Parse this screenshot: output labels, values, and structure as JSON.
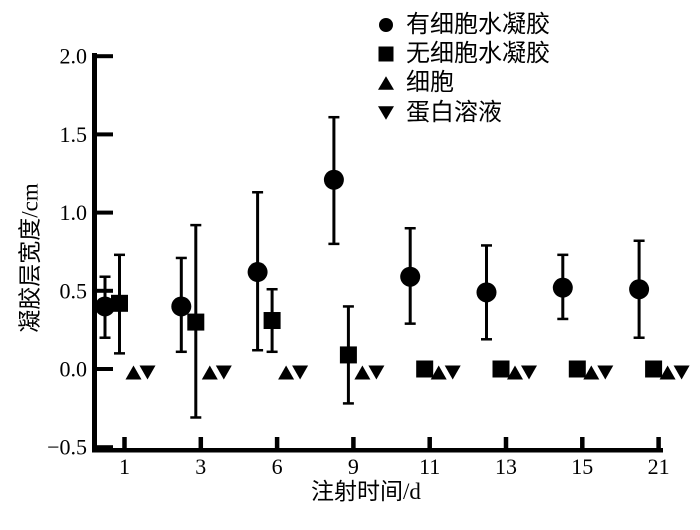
{
  "figure": {
    "background": "#ffffff",
    "foreground": "#000000"
  },
  "chart_data": {
    "type": "scatter",
    "title": "",
    "xlabel": "注射时间/d",
    "ylabel": "凝胶层宽度/cm",
    "x_tick_labels": [
      "1",
      "3",
      "6",
      "9",
      "11",
      "13",
      "15",
      "21"
    ],
    "y_tick_labels": [
      "2.0",
      "1.5",
      "1.0",
      "0.5",
      "0.0",
      "−0.5"
    ],
    "y_tick_values": [
      2.0,
      1.5,
      1.0,
      0.5,
      0.0,
      -0.5
    ],
    "ylim": [
      -0.5,
      2.0
    ],
    "grid": false,
    "legend_position": "top-right",
    "series": [
      {
        "name": "有细胞水凝胶",
        "marker": "circle",
        "values": [
          0.4,
          0.4,
          0.62,
          1.21,
          0.59,
          0.49,
          0.52,
          0.51
        ],
        "err_low": [
          0.2,
          0.11,
          0.12,
          0.8,
          0.29,
          0.19,
          0.32,
          0.2
        ],
        "err_high": [
          0.59,
          0.71,
          1.13,
          1.61,
          0.9,
          0.79,
          0.73,
          0.82
        ]
      },
      {
        "name": "无细胞水凝胶",
        "marker": "square",
        "values": [
          0.42,
          0.3,
          0.31,
          0.09,
          0,
          0,
          0,
          0
        ],
        "err_low": [
          0.1,
          -0.31,
          0.11,
          -0.22,
          0,
          0,
          0,
          0
        ],
        "err_high": [
          0.73,
          0.92,
          0.51,
          0.4,
          0,
          0,
          0,
          0
        ]
      },
      {
        "name": "细胞",
        "marker": "triangle-up",
        "values": [
          0,
          0,
          0,
          0,
          0,
          0,
          0,
          0
        ],
        "err_low": [
          0,
          0,
          0,
          0,
          0,
          0,
          0,
          0
        ],
        "err_high": [
          0,
          0,
          0,
          0,
          0,
          0,
          0,
          0
        ]
      },
      {
        "name": "蛋白溶液",
        "marker": "triangle-down",
        "values": [
          0,
          0,
          0,
          0,
          0,
          0,
          0,
          0
        ],
        "err_low": [
          0,
          0,
          0,
          0,
          0,
          0,
          0,
          0
        ],
        "err_high": [
          0,
          0,
          0,
          0,
          0,
          0,
          0,
          0
        ]
      }
    ]
  }
}
